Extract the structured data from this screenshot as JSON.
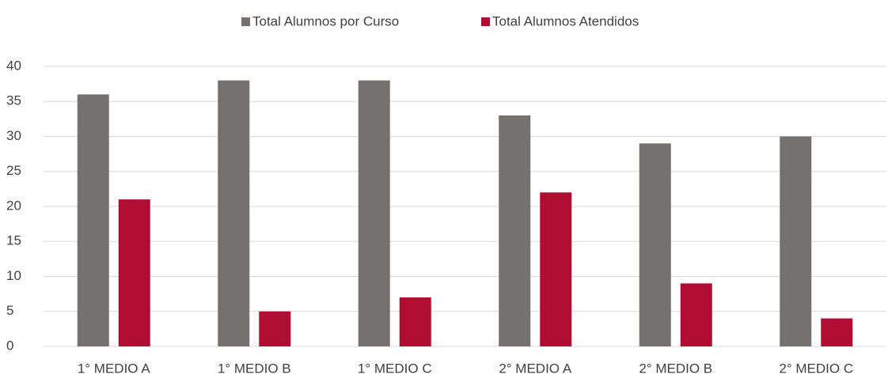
{
  "chart_data": {
    "type": "bar",
    "categories": [
      "1° MEDIO A",
      "1° MEDIO B",
      "1° MEDIO C",
      "2° MEDIO A",
      "2° MEDIO B",
      "2° MEDIO C"
    ],
    "series": [
      {
        "name": "Total Alumnos por Curso",
        "color": "#767171",
        "values": [
          36,
          38,
          38,
          33,
          29,
          30
        ]
      },
      {
        "name": "Total Alumnos Atendidos",
        "color": "#b00d32",
        "values": [
          21,
          5,
          7,
          22,
          9,
          4
        ]
      }
    ],
    "ylim": [
      0,
      40
    ],
    "yticks": [
      0,
      5,
      10,
      15,
      20,
      25,
      30,
      35,
      40
    ],
    "grid": true,
    "legend": "top"
  }
}
